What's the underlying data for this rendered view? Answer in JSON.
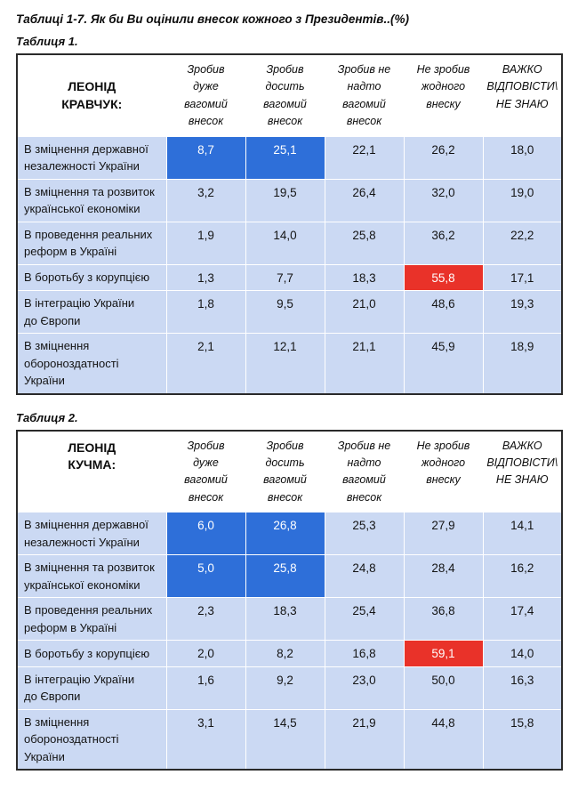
{
  "title": "Таблиці 1-7. Як би Ви оцінили внесок кожного з Президентів..(%)",
  "colors": {
    "table_bg": "#cbd9f3",
    "highlight_blue": "#2e6fd9",
    "highlight_red": "#e93229",
    "highlight_text": "#ffffff",
    "border": "#2a2a2a"
  },
  "columns": [
    "Зробив\nдуже\nвагомий\nвнесок",
    "Зробив\nдосить\nвагомий\nвнесок",
    "Зробив не\nнадто\nвагомий\nвнесок",
    "Не зробив\nжодного\nвнеску",
    "ВАЖКО\nВІДПОВІСТИ\\\nНЕ ЗНАЮ"
  ],
  "tables": [
    {
      "caption": "Таблиця 1.",
      "subject": "ЛЕОНІД\nКРАВЧУК:",
      "rows": [
        {
          "label": "В зміцнення державної\nнезалежності України",
          "values": [
            "8,7",
            "25,1",
            "22,1",
            "26,2",
            "18,0"
          ]
        },
        {
          "label": "В зміцнення та розвиток\nукраїнської економіки",
          "values": [
            "3,2",
            "19,5",
            "26,4",
            "32,0",
            "19,0"
          ]
        },
        {
          "label": "В проведення реальних\nреформ в Україні",
          "values": [
            "1,9",
            "14,0",
            "25,8",
            "36,2",
            "22,2"
          ]
        },
        {
          "label": "В боротьбу з корупцією",
          "values": [
            "1,3",
            "7,7",
            "18,3",
            "55,8",
            "17,1"
          ]
        },
        {
          "label": "В інтеграцію України\nдо Європи",
          "values": [
            "1,8",
            "9,5",
            "21,0",
            "48,6",
            "19,3"
          ]
        },
        {
          "label": "В зміцнення\nобороноздатності\nУкраїни",
          "values": [
            "2,1",
            "12,1",
            "21,1",
            "45,9",
            "18,9"
          ]
        }
      ]
    },
    {
      "caption": "Таблиця 2.",
      "subject": "ЛЕОНІД\nКУЧМА:",
      "rows": [
        {
          "label": "В зміцнення державної\nнезалежності України",
          "values": [
            "6,0",
            "26,8",
            "25,3",
            "27,9",
            "14,1"
          ]
        },
        {
          "label": "В зміцнення та розвиток\nукраїнської економіки",
          "values": [
            "5,0",
            "25,8",
            "24,8",
            "28,4",
            "16,2"
          ]
        },
        {
          "label": "В проведення реальних\nреформ в Україні",
          "values": [
            "2,3",
            "18,3",
            "25,4",
            "36,8",
            "17,4"
          ]
        },
        {
          "label": "В боротьбу з корупцією",
          "values": [
            "2,0",
            "8,2",
            "16,8",
            "59,1",
            "14,0"
          ]
        },
        {
          "label": "В інтеграцію України\nдо Європи",
          "values": [
            "1,6",
            "9,2",
            "23,0",
            "50,0",
            "16,3"
          ]
        },
        {
          "label": "В зміцнення\nобороноздатності України",
          "values": [
            "3,1",
            "14,5",
            "21,9",
            "44,8",
            "15,8"
          ]
        }
      ]
    }
  ]
}
